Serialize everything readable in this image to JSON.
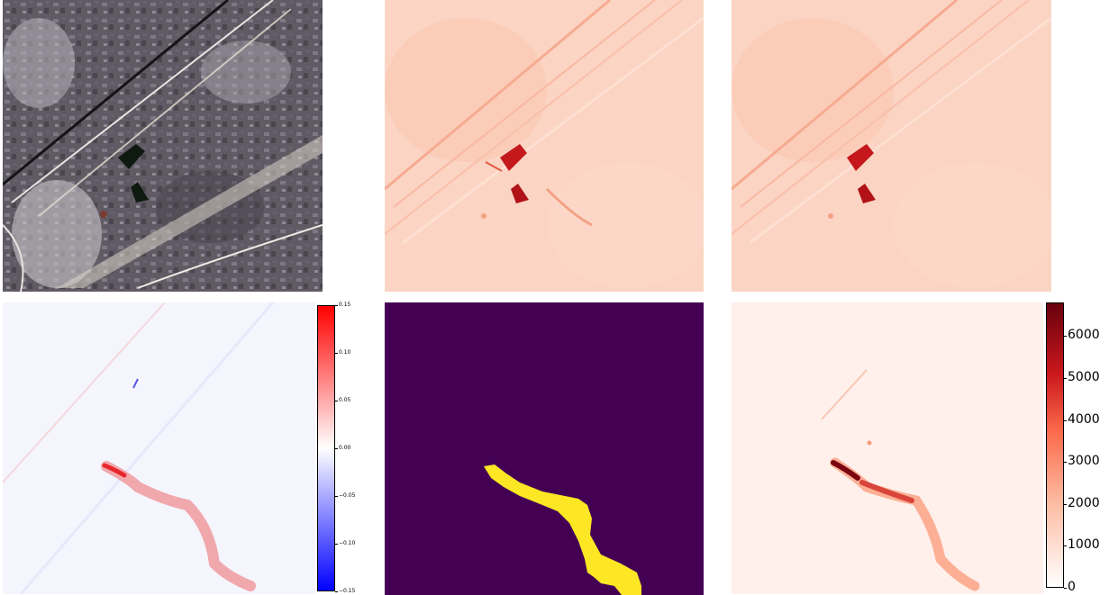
{
  "panels": [
    {
      "id": "rgb",
      "kind": "satellite-rgb"
    },
    {
      "id": "band-a",
      "kind": "reds-map"
    },
    {
      "id": "band-b",
      "kind": "reds-map"
    },
    {
      "id": "ratio-diff",
      "kind": "bwr-map"
    },
    {
      "id": "mask",
      "kind": "binary-mask"
    },
    {
      "id": "enhancement",
      "kind": "reds-map"
    }
  ],
  "colorbar_diff": {
    "colormap": "bwr",
    "range": [
      -0.15,
      0.15
    ],
    "ticks": [
      "0.15",
      "0.10",
      "0.05",
      "0.00",
      "−0.05",
      "−0.10",
      "−0.15"
    ]
  },
  "colorbar_enh": {
    "colormap": "Reds",
    "range": [
      0,
      6800
    ],
    "ticks": [
      "6000",
      "5000",
      "4000",
      "3000",
      "2000",
      "1000",
      "0"
    ]
  },
  "colors": {
    "mask_background": "#440154",
    "mask_foreground": "#fde725",
    "reds_light": "#fbd3c2",
    "reds_dark": "#b71418"
  }
}
